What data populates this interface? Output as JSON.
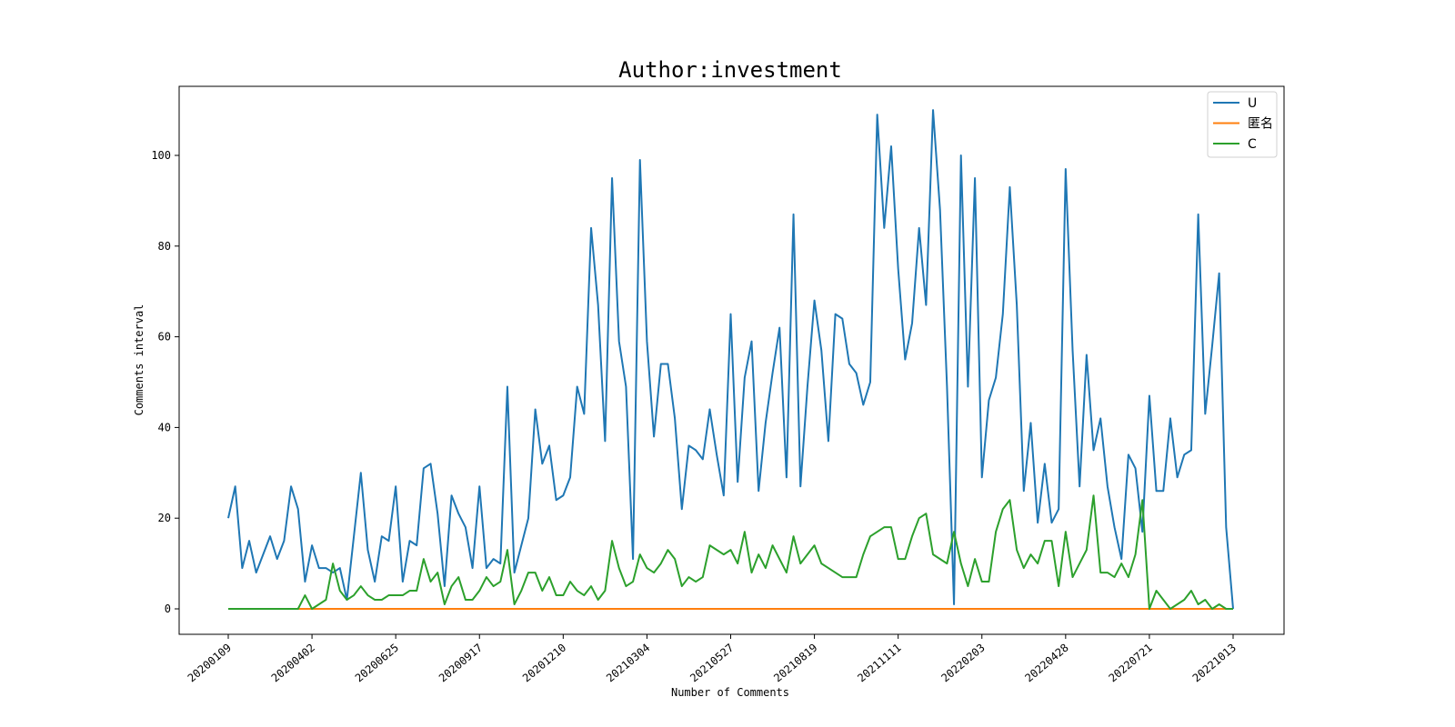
{
  "chart_data": {
    "type": "line",
    "title": "Author:investment",
    "xlabel": "Number of Comments",
    "ylabel": "Comments interval",
    "ylim": [
      -5,
      115
    ],
    "yticks": [
      0,
      20,
      40,
      60,
      80,
      100
    ],
    "x_range": [
      0,
      144
    ],
    "x_ticks": [
      {
        "x": 0,
        "label": "20200109"
      },
      {
        "x": 12,
        "label": "20200402"
      },
      {
        "x": 24,
        "label": "20200625"
      },
      {
        "x": 36,
        "label": "20200917"
      },
      {
        "x": 48,
        "label": "20201210"
      },
      {
        "x": 60,
        "label": "20210304"
      },
      {
        "x": 72,
        "label": "20210527"
      },
      {
        "x": 84,
        "label": "20210819"
      },
      {
        "x": 96,
        "label": "20211111"
      },
      {
        "x": 108,
        "label": "20220203"
      },
      {
        "x": 120,
        "label": "20220428"
      },
      {
        "x": 132,
        "label": "20220721"
      },
      {
        "x": 144,
        "label": "20221013"
      }
    ],
    "grid": false,
    "legend_position": "top-right",
    "series": [
      {
        "name": "U",
        "color": "#1f77b4",
        "values": [
          20,
          27,
          9,
          15,
          8,
          12,
          16,
          11,
          15,
          27,
          22,
          6,
          14,
          9,
          9,
          8,
          9,
          2,
          16,
          30,
          13,
          6,
          16,
          15,
          27,
          6,
          15,
          14,
          31,
          32,
          21,
          5,
          25,
          21,
          18,
          9,
          27,
          9,
          11,
          10,
          49,
          8,
          14,
          20,
          44,
          32,
          36,
          24,
          25,
          29,
          49,
          43,
          84,
          67,
          37,
          95,
          59,
          49,
          11,
          99,
          59,
          38,
          54,
          54,
          42,
          22,
          36,
          35,
          33,
          44,
          34,
          25,
          65,
          28,
          51,
          59,
          26,
          41,
          52,
          62,
          29,
          87,
          27,
          49,
          68,
          57,
          37,
          65,
          64,
          54,
          52,
          45,
          50,
          109,
          84,
          102,
          75,
          55,
          63,
          84,
          67,
          110,
          88,
          49,
          1,
          100,
          49,
          95,
          29,
          46,
          51,
          65,
          93,
          67,
          26,
          41,
          19,
          32,
          19,
          22,
          97,
          57,
          27,
          56,
          35,
          42,
          27,
          18,
          11,
          34,
          31,
          17,
          47,
          26,
          26,
          42,
          29,
          34,
          35,
          87,
          43,
          58,
          74,
          18,
          0
        ]
      },
      {
        "name": "匿名",
        "color": "#ff7f0e",
        "values": [
          0,
          0,
          0,
          0,
          0,
          0,
          0,
          0,
          0,
          0,
          0,
          0,
          0,
          0,
          0,
          0,
          0,
          0,
          0,
          0,
          0,
          0,
          0,
          0,
          0,
          0,
          0,
          0,
          0,
          0,
          0,
          0,
          0,
          0,
          0,
          0,
          0,
          0,
          0,
          0,
          0,
          0,
          0,
          0,
          0,
          0,
          0,
          0,
          0,
          0,
          0,
          0,
          0,
          0,
          0,
          0,
          0,
          0,
          0,
          0,
          0,
          0,
          0,
          0,
          0,
          0,
          0,
          0,
          0,
          0,
          0,
          0,
          0,
          0,
          0,
          0,
          0,
          0,
          0,
          0,
          0,
          0,
          0,
          0,
          0,
          0,
          0,
          0,
          0,
          0,
          0,
          0,
          0,
          0,
          0,
          0,
          0,
          0,
          0,
          0,
          0,
          0,
          0,
          0,
          0,
          0,
          0,
          0,
          0,
          0,
          0,
          0,
          0,
          0,
          0,
          0,
          0,
          0,
          0,
          0,
          0,
          0,
          0,
          0,
          0,
          0,
          0,
          0,
          0,
          0,
          0,
          0,
          0,
          0,
          0,
          0,
          0,
          0,
          0,
          0,
          0,
          0,
          0,
          0,
          0
        ]
      },
      {
        "name": "C",
        "color": "#2ca02c",
        "values": [
          0,
          0,
          0,
          0,
          0,
          0,
          0,
          0,
          0,
          0,
          0,
          3,
          0,
          1,
          2,
          10,
          4,
          2,
          3,
          5,
          3,
          2,
          2,
          3,
          3,
          3,
          4,
          4,
          11,
          6,
          8,
          1,
          5,
          7,
          2,
          2,
          4,
          7,
          5,
          6,
          13,
          1,
          4,
          8,
          8,
          4,
          7,
          3,
          3,
          6,
          4,
          3,
          5,
          2,
          4,
          15,
          9,
          5,
          6,
          12,
          9,
          8,
          10,
          13,
          11,
          5,
          7,
          6,
          7,
          14,
          13,
          12,
          13,
          10,
          17,
          8,
          12,
          9,
          14,
          11,
          8,
          16,
          10,
          12,
          14,
          10,
          9,
          8,
          7,
          7,
          7,
          12,
          16,
          17,
          18,
          18,
          11,
          11,
          16,
          20,
          21,
          12,
          11,
          10,
          17,
          10,
          5,
          11,
          6,
          6,
          17,
          22,
          24,
          13,
          9,
          12,
          10,
          15,
          15,
          5,
          17,
          7,
          10,
          13,
          25,
          8,
          8,
          7,
          10,
          7,
          12,
          24,
          0,
          4,
          2,
          0,
          1,
          2,
          4,
          1,
          2,
          0,
          1,
          0,
          0
        ]
      }
    ]
  }
}
